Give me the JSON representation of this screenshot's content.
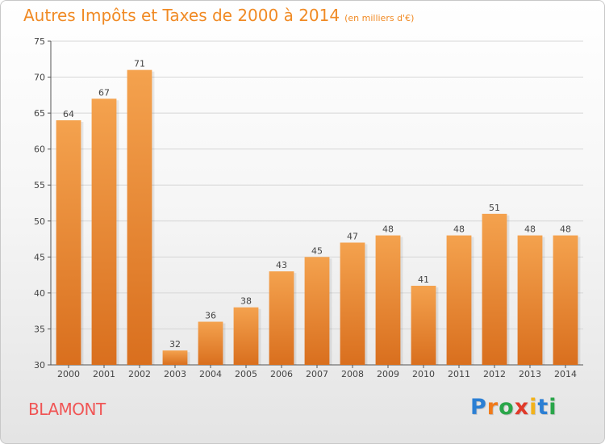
{
  "chart_data": {
    "type": "bar",
    "title": "Autres Impôts et Taxes de 2000 à 2014",
    "unit": "(en milliers d'€)",
    "categories": [
      "2000",
      "2001",
      "2002",
      "2003",
      "2004",
      "2005",
      "2006",
      "2007",
      "2008",
      "2009",
      "2010",
      "2011",
      "2012",
      "2013",
      "2014"
    ],
    "values": [
      64,
      67,
      71,
      32,
      36,
      38,
      43,
      45,
      47,
      48,
      41,
      48,
      51,
      48,
      48
    ],
    "yticks": [
      30,
      35,
      40,
      45,
      50,
      55,
      60,
      65,
      70,
      75
    ],
    "ylim": [
      30,
      75
    ],
    "xlabel": "",
    "ylabel": "",
    "bar_color_top": "#f4a24e",
    "bar_color_bottom": "#d96f1e",
    "grid": true
  },
  "footer": {
    "commune": "BLAMONT",
    "logo_letters": [
      "P",
      "r",
      "o",
      "x",
      "i",
      "t",
      "i"
    ],
    "logo_colors": [
      "#2b7fd4",
      "#f07a1a",
      "#2aa64a",
      "#e03a2a",
      "#f2b21a",
      "#2b7fd4",
      "#2aa64a"
    ]
  }
}
